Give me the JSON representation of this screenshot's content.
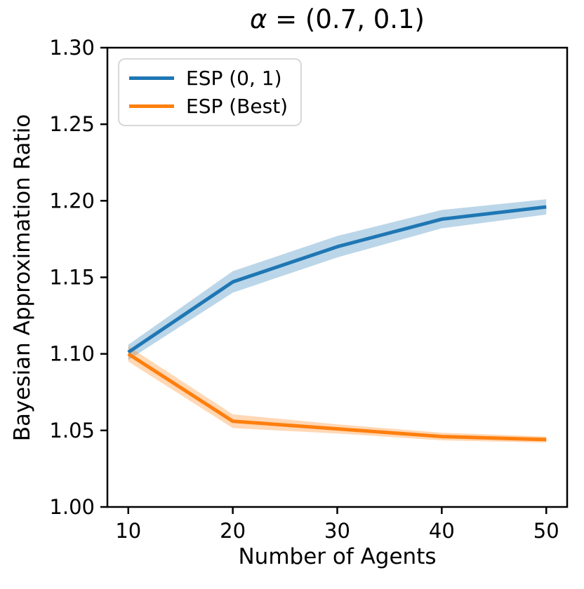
{
  "title": {
    "symbol": "α",
    "rest": " = (0.7, 0.1)"
  },
  "axes": {
    "xlabel": "Number of Agents",
    "ylabel": "Bayesian Approximation Ratio",
    "x_ticks": [
      {
        "value": 10,
        "label": "10"
      },
      {
        "value": 20,
        "label": "20"
      },
      {
        "value": 30,
        "label": "30"
      },
      {
        "value": 40,
        "label": "40"
      },
      {
        "value": 50,
        "label": "50"
      }
    ],
    "y_ticks": [
      {
        "value": 1.0,
        "label": "1.00"
      },
      {
        "value": 1.05,
        "label": "1.05"
      },
      {
        "value": 1.1,
        "label": "1.10"
      },
      {
        "value": 1.15,
        "label": "1.15"
      },
      {
        "value": 1.2,
        "label": "1.20"
      },
      {
        "value": 1.25,
        "label": "1.25"
      },
      {
        "value": 1.3,
        "label": "1.30"
      }
    ]
  },
  "legend": {
    "entries": [
      {
        "label": "ESP (0, 1)",
        "color": "#1f77b4"
      },
      {
        "label": "ESP (Best)",
        "color": "#ff7f0e"
      }
    ]
  },
  "colors": {
    "blue_line": "#1f77b4",
    "orange_line": "#ff7f0e",
    "band_alpha": 0.3,
    "spine": "#000000",
    "text": "#000000"
  },
  "chart_data": {
    "type": "line",
    "title": "α = (0.7, 0.1)",
    "xlabel": "Number of Agents",
    "ylabel": "Bayesian Approximation Ratio",
    "x": [
      10,
      20,
      30,
      40,
      50
    ],
    "series": [
      {
        "name": "ESP (0, 1)",
        "color": "#1f77b4",
        "values": [
          1.101,
          1.147,
          1.17,
          1.188,
          1.196
        ],
        "band_half_width": [
          0.005,
          0.007,
          0.007,
          0.006,
          0.005
        ]
      },
      {
        "name": "ESP (Best)",
        "color": "#ff7f0e",
        "values": [
          1.1,
          1.056,
          1.051,
          1.046,
          1.044
        ],
        "band_half_width": [
          0.005,
          0.0045,
          0.003,
          0.0025,
          0.002
        ]
      }
    ],
    "xlim": [
      8,
      52
    ],
    "ylim": [
      1.0,
      1.3
    ],
    "grid": false,
    "legend_position": "upper left"
  }
}
